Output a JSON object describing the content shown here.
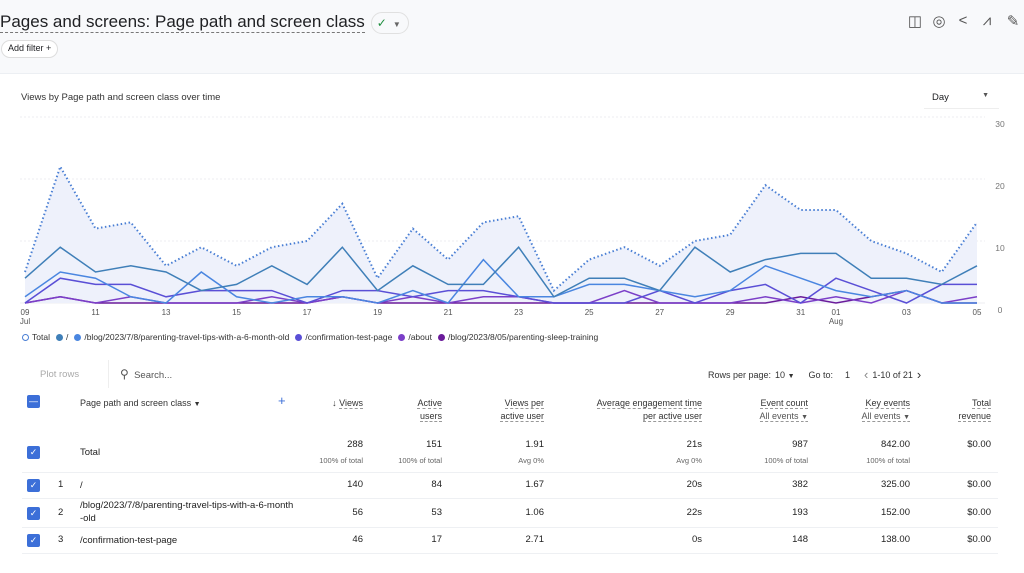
{
  "header": {
    "title": "Pages and screens: Page path and screen class",
    "add_filter": "Add filter",
    "add_filter_icon": "plus-icon",
    "toolbar_icons": [
      "compare-icon",
      "insights-icon",
      "share-icon",
      "trend-icon",
      "edit-icon"
    ]
  },
  "chart_card": {
    "title": "Views by Page path and screen class over time",
    "granularity": "Day"
  },
  "chart_data": {
    "type": "line",
    "title": "Views by Page path and screen class over time",
    "ylim": [
      0,
      30
    ],
    "yticks": [
      0,
      10,
      20,
      30
    ],
    "grid": true,
    "legend_position": "bottom-left",
    "x": [
      "Jul 9",
      "Jul 10",
      "Jul 11",
      "Jul 12",
      "Jul 13",
      "Jul 14",
      "Jul 15",
      "Jul 16",
      "Jul 17",
      "Jul 18",
      "Jul 19",
      "Jul 20",
      "Jul 21",
      "Jul 22",
      "Jul 23",
      "Jul 24",
      "Jul 25",
      "Jul 26",
      "Jul 27",
      "Jul 28",
      "Jul 29",
      "Jul 30",
      "Jul 31",
      "Aug 1",
      "Aug 2",
      "Aug 3",
      "Aug 4",
      "Aug 5"
    ],
    "xtick_labels": [
      {
        "d": "09",
        "m": "Jul",
        "i": 0
      },
      {
        "d": "11",
        "i": 2
      },
      {
        "d": "13",
        "i": 4
      },
      {
        "d": "15",
        "i": 6
      },
      {
        "d": "17",
        "i": 8
      },
      {
        "d": "19",
        "i": 10
      },
      {
        "d": "21",
        "i": 12
      },
      {
        "d": "23",
        "i": 14
      },
      {
        "d": "25",
        "i": 16
      },
      {
        "d": "27",
        "i": 18
      },
      {
        "d": "29",
        "i": 20
      },
      {
        "d": "31",
        "i": 22
      },
      {
        "d": "01",
        "m": "Aug",
        "i": 23
      },
      {
        "d": "03",
        "i": 25
      },
      {
        "d": "05",
        "i": 27
      }
    ],
    "series": [
      {
        "name": "Total",
        "color": "#4a7fd4",
        "dotted": true,
        "values": [
          5,
          22,
          12,
          13,
          6,
          9,
          6,
          9,
          10,
          16,
          4,
          12,
          7,
          13,
          14,
          2,
          7,
          9,
          6,
          10,
          11,
          19,
          15,
          15,
          10,
          8,
          5,
          13
        ]
      },
      {
        "name": "/",
        "color": "#3f7fb8",
        "values": [
          4,
          9,
          5,
          6,
          5,
          2,
          3,
          6,
          3,
          9,
          2,
          6,
          3,
          3,
          9,
          1,
          4,
          4,
          2,
          9,
          5,
          7,
          8,
          8,
          4,
          4,
          3,
          6
        ]
      },
      {
        "name": "/blog/2023/7/8/parenting-travel-tips-with-a-6-month-old",
        "color": "#4a86e0",
        "values": [
          1,
          5,
          4,
          1,
          0,
          5,
          1,
          0,
          1,
          1,
          0,
          2,
          0,
          7,
          1,
          1,
          3,
          3,
          2,
          1,
          2,
          6,
          4,
          2,
          1,
          2,
          0,
          0
        ]
      },
      {
        "name": "/confirmation-test-page",
        "color": "#5a4fd6",
        "values": [
          0,
          4,
          3,
          3,
          1,
          2,
          2,
          2,
          0,
          2,
          2,
          1,
          2,
          2,
          1,
          0,
          0,
          0,
          2,
          0,
          2,
          3,
          0,
          4,
          2,
          0,
          3,
          3
        ]
      },
      {
        "name": "/about",
        "color": "#7b3fc8",
        "values": [
          0,
          1,
          0,
          1,
          0,
          0,
          0,
          1,
          0,
          1,
          0,
          1,
          0,
          1,
          1,
          0,
          0,
          2,
          0,
          0,
          0,
          1,
          0,
          1,
          0,
          2,
          0,
          1
        ]
      },
      {
        "name": "/blog/2023/8/05/parenting-sleep-training",
        "color": "#6a1b9a",
        "values": [
          0,
          1,
          0,
          0,
          0,
          0,
          0,
          0,
          0,
          1,
          0,
          0,
          0,
          0,
          0,
          0,
          0,
          0,
          0,
          0,
          0,
          0,
          1,
          0,
          1,
          2,
          0,
          0
        ]
      }
    ]
  },
  "table": {
    "plot_rows": "Plot rows",
    "search_placeholder": "Search...",
    "rows_per_page_label": "Rows per page:",
    "rows_per_page": "10",
    "go_to_label": "Go to:",
    "go_to": "1",
    "range": "1-10 of 21",
    "columns": {
      "dimension": "Page path and screen class",
      "views": "Views",
      "active_users_1": "Active",
      "active_users_2": "users",
      "vpu_1": "Views per",
      "vpu_2": "active user",
      "aet_1": "Average engagement time",
      "aet_2": "per active user",
      "events": "Event count",
      "events_sub": "All events",
      "key": "Key events",
      "key_sub": "All events",
      "rev_1": "Total",
      "rev_2": "revenue"
    },
    "total": {
      "label": "Total",
      "views": "288",
      "views_sub": "100% of total",
      "users": "151",
      "users_sub": "100% of total",
      "vpu": "1.91",
      "vpu_sub": "Avg 0%",
      "aet": "21s",
      "aet_sub": "Avg 0%",
      "events": "987",
      "events_sub": "100% of total",
      "key": "842.00",
      "key_sub": "100% of total",
      "rev": "$0.00"
    },
    "rows": [
      {
        "n": "1",
        "path": "/",
        "views": "140",
        "users": "84",
        "vpu": "1.67",
        "aet": "20s",
        "events": "382",
        "key": "325.00",
        "rev": "$0.00"
      },
      {
        "n": "2",
        "path": "/blog/2023/7/8/parenting-travel-tips-with-a-6-month-old",
        "views": "56",
        "users": "53",
        "vpu": "1.06",
        "aet": "22s",
        "events": "193",
        "key": "152.00",
        "rev": "$0.00"
      },
      {
        "n": "3",
        "path": "/confirmation-test-page",
        "views": "46",
        "users": "17",
        "vpu": "2.71",
        "aet": "0s",
        "events": "148",
        "key": "138.00",
        "rev": "$0.00"
      }
    ]
  }
}
